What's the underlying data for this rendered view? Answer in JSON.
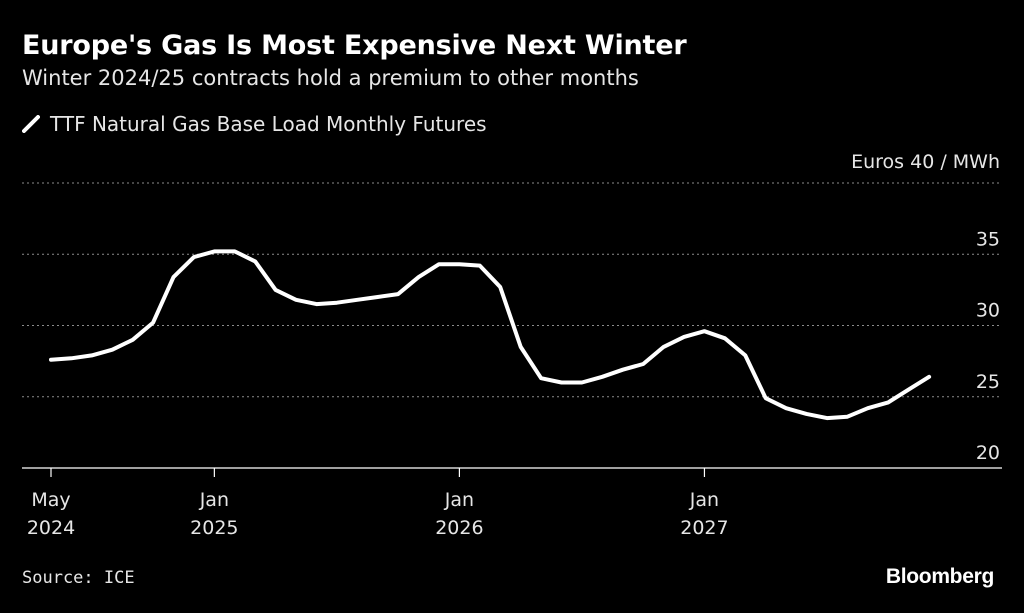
{
  "colors": {
    "background": "#000000",
    "line": "#ffffff",
    "grid": "#8c8c8c",
    "axis": "#ffffff",
    "text": "#e6e6e6"
  },
  "chart_data": {
    "type": "line",
    "title": "Europe's Gas Is Most Expensive Next Winter",
    "subtitle": "Winter 2024/25 contracts hold a premium to other months",
    "unit_label": "Euros 40 / MWh",
    "ylim": [
      20,
      40
    ],
    "y_ticks": [
      {
        "value": 40,
        "label": ""
      },
      {
        "value": 35,
        "label": "35"
      },
      {
        "value": 30,
        "label": "30"
      },
      {
        "value": 25,
        "label": "25"
      },
      {
        "value": 20,
        "label": "20"
      }
    ],
    "x_ticks": [
      {
        "date": "2024-05",
        "line1": "May",
        "line2": "2024"
      },
      {
        "date": "2025-01",
        "line1": "Jan",
        "line2": "2025"
      },
      {
        "date": "2026-01",
        "line1": "Jan",
        "line2": "2026"
      },
      {
        "date": "2027-01",
        "line1": "Jan",
        "line2": "2027"
      }
    ],
    "grid": true,
    "legend_position": "top-left",
    "series": [
      {
        "name": "TTF Natural Gas Base Load Monthly Futures",
        "x": [
          "2024-05",
          "2024-06",
          "2024-07",
          "2024-08",
          "2024-09",
          "2024-10",
          "2024-11",
          "2024-12",
          "2025-01",
          "2025-02",
          "2025-03",
          "2025-04",
          "2025-05",
          "2025-06",
          "2025-07",
          "2025-08",
          "2025-09",
          "2025-10",
          "2025-11",
          "2025-12",
          "2026-01",
          "2026-02",
          "2026-03",
          "2026-04",
          "2026-05",
          "2026-06",
          "2026-07",
          "2026-08",
          "2026-09",
          "2026-10",
          "2026-11",
          "2026-12",
          "2027-01",
          "2027-02",
          "2027-03",
          "2027-04",
          "2027-05",
          "2027-06",
          "2027-07",
          "2027-08",
          "2027-09",
          "2027-10",
          "2027-11",
          "2027-12",
          "2028-01",
          "2028-02"
        ],
        "values": [
          27.6,
          27.7,
          27.9,
          28.3,
          29.0,
          30.2,
          33.4,
          34.8,
          35.2,
          35.2,
          34.5,
          32.5,
          31.8,
          31.5,
          31.6,
          31.8,
          32.0,
          32.2,
          33.4,
          34.3,
          34.3,
          34.2,
          32.7,
          28.5,
          26.3,
          26.0,
          26.0,
          26.4,
          26.9,
          27.3,
          28.5,
          29.2,
          29.6,
          29.1,
          27.9,
          24.9,
          24.2,
          23.8,
          23.5,
          23.6,
          24.2,
          24.6,
          25.5,
          26.4,
          null,
          null
        ]
      }
    ]
  },
  "source": "Source: ICE",
  "logo": "Bloomberg"
}
